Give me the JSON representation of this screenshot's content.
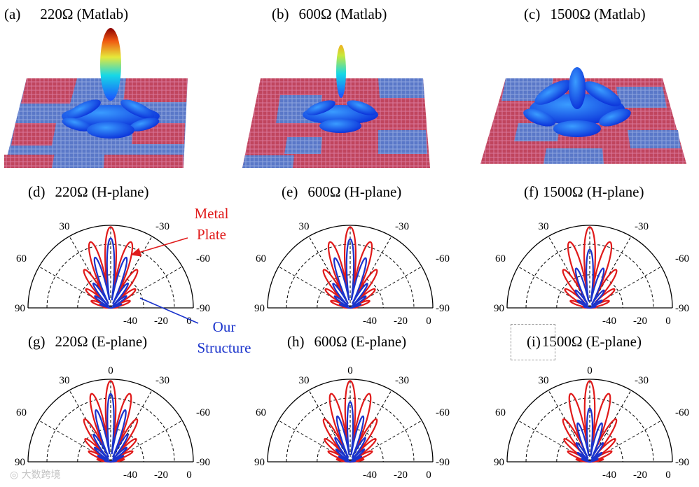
{
  "captions": {
    "a": {
      "label": "(a)",
      "text": "220Ω  (Matlab)"
    },
    "b": {
      "label": "(b)",
      "text": "600Ω  (Matlab)"
    },
    "c": {
      "label": "(c)",
      "text": "1500Ω  (Matlab)"
    },
    "d": {
      "label": "(d)",
      "text": "220Ω  (H-plane)"
    },
    "e": {
      "label": "(e)",
      "text": "600Ω  (H-plane)"
    },
    "f": {
      "label": "(f)",
      "text": "1500Ω  (H-plane)"
    },
    "g": {
      "label": "(g)",
      "text": "220Ω  (E-plane)"
    },
    "h": {
      "label": "(h)",
      "text": "600Ω  (E-plane)"
    },
    "i": {
      "label": "(i)",
      "text": "1500Ω  (E-plane)"
    }
  },
  "annotations": {
    "metal_plate": "Metal\nPlate",
    "metal_line1": "Metal",
    "metal_line2": "Plate",
    "our_line1": "Our",
    "our_line2": "Structure"
  },
  "polar_ticks": {
    "angles": [
      "0",
      "30",
      "-30",
      "60",
      "-60",
      "90",
      "-90"
    ],
    "radial": [
      "-40",
      "-20",
      "0"
    ]
  },
  "watermark": "大数跨境",
  "colors": {
    "metal_plate": "#e01a1a",
    "our_structure": "#1a33cc",
    "tile_red": "#c0455e",
    "tile_blue": "#5a78c8"
  },
  "chart_data": [
    {
      "type": "polar",
      "id": "d",
      "title": "220Ω (H-plane)",
      "theta_range": [
        -90,
        90
      ],
      "r_range_db": [
        -40,
        0
      ],
      "series": [
        {
          "name": "Metal Plate",
          "color": "#e01a1a"
        },
        {
          "name": "Our Structure",
          "color": "#1a33cc"
        }
      ]
    },
    {
      "type": "polar",
      "id": "e",
      "title": "600Ω (H-plane)",
      "theta_range": [
        -90,
        90
      ],
      "r_range_db": [
        -40,
        0
      ],
      "series": [
        {
          "name": "Metal Plate",
          "color": "#e01a1a"
        },
        {
          "name": "Our Structure",
          "color": "#1a33cc"
        }
      ]
    },
    {
      "type": "polar",
      "id": "f",
      "title": "1500Ω (H-plane)",
      "theta_range": [
        -90,
        90
      ],
      "r_range_db": [
        -40,
        0
      ],
      "series": [
        {
          "name": "Metal Plate",
          "color": "#e01a1a"
        },
        {
          "name": "Our Structure",
          "color": "#1a33cc"
        }
      ]
    },
    {
      "type": "polar",
      "id": "g",
      "title": "220Ω (E-plane)",
      "theta_range": [
        -90,
        90
      ],
      "r_range_db": [
        -40,
        0
      ],
      "series": [
        {
          "name": "Metal Plate",
          "color": "#e01a1a"
        },
        {
          "name": "Our Structure",
          "color": "#1a33cc"
        }
      ]
    },
    {
      "type": "polar",
      "id": "h",
      "title": "600Ω (E-plane)",
      "theta_range": [
        -90,
        90
      ],
      "r_range_db": [
        -40,
        0
      ],
      "series": [
        {
          "name": "Metal Plate",
          "color": "#e01a1a"
        },
        {
          "name": "Our Structure",
          "color": "#1a33cc"
        }
      ]
    },
    {
      "type": "polar",
      "id": "i",
      "title": "1500Ω (E-plane)",
      "theta_range": [
        -90,
        90
      ],
      "r_range_db": [
        -40,
        0
      ],
      "series": [
        {
          "name": "Metal Plate",
          "color": "#e01a1a"
        },
        {
          "name": "Our Structure",
          "color": "#1a33cc"
        }
      ]
    }
  ]
}
